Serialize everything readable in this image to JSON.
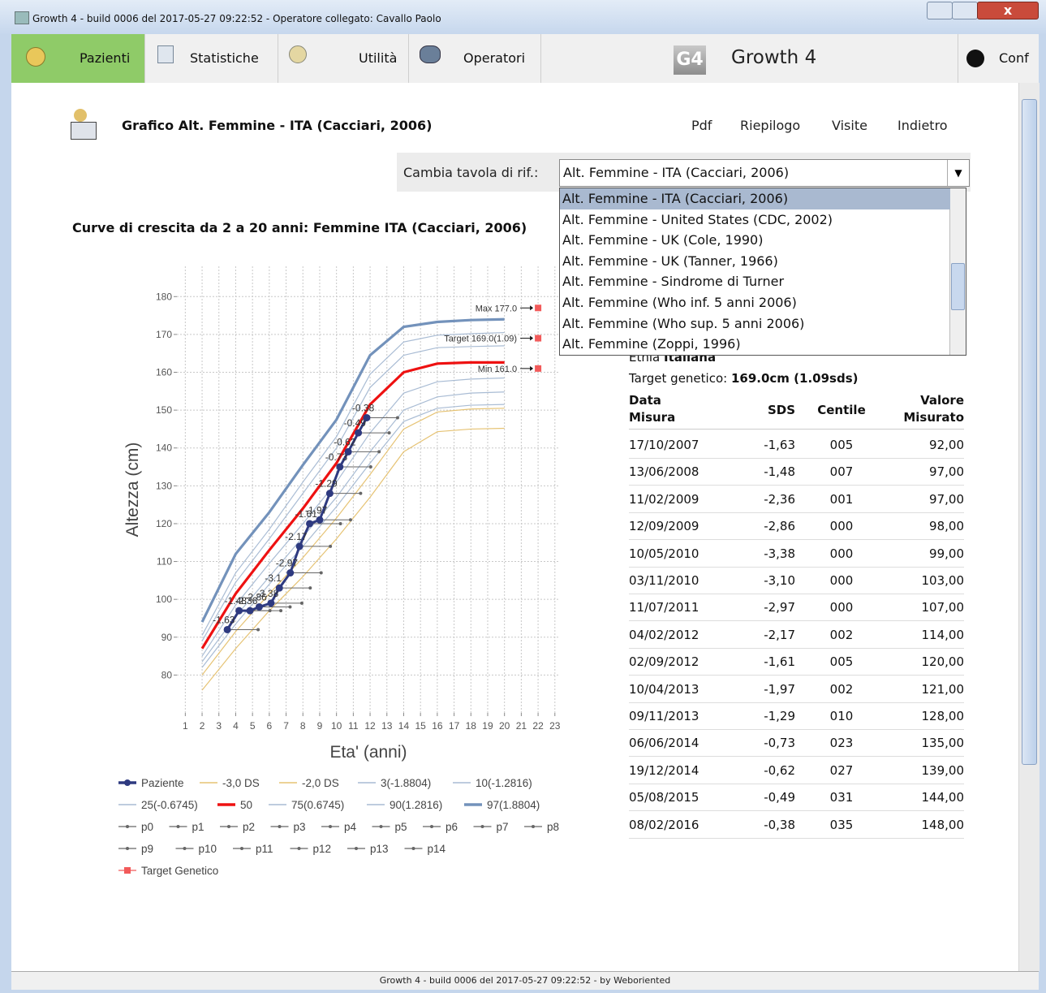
{
  "window": {
    "title": "Growth 4 - build 0006 del 2017-05-27 09:22:52 - Operatore collegato: Cavallo Paolo",
    "footer": "Growth 4 - build 0006 del 2017-05-27 09:22:52 - by Weboriented"
  },
  "menu": {
    "items": [
      "Pazienti",
      "Statistiche",
      "Utilità",
      "Operatori"
    ],
    "app_name": "Growth 4",
    "config": "Conf"
  },
  "header": {
    "title": "Grafico Alt. Femmine - ITA (Cacciari, 2006)",
    "links": [
      "Pdf",
      "Riepilogo",
      "Visite",
      "Indietro"
    ]
  },
  "selector": {
    "label": "Cambia tavola di rif.:",
    "selected": "Alt. Femmine - ITA (Cacciari, 2006)",
    "options": [
      "Alt. Femmine - ITA (Cacciari, 2006)",
      "Alt. Femmine - United States (CDC, 2002)",
      "Alt. Femmine - UK (Cole, 1990)",
      "Alt. Femmine - UK (Tanner, 1966)",
      "Alt. Femmine - Sindrome di Turner",
      "Alt. Femmine (Who inf. 5 anni 2006)",
      "Alt. Femmine (Who sup. 5 anni 2006)",
      "Alt. Femmine (Zoppi, 1996)"
    ]
  },
  "chart": {
    "type": "line",
    "title": "Curve di crescita da 2 a 20 anni: Femmine ITA (Cacciari, 2006)",
    "x_label": "Eta' (anni)",
    "y_label": "Altezza (cm)",
    "xlim": [
      0.5,
      23.3
    ],
    "ylim": [
      70,
      188
    ],
    "xticks": [
      1,
      2,
      3,
      4,
      5,
      6,
      7,
      8,
      9,
      10,
      11,
      12,
      13,
      14,
      15,
      16,
      17,
      18,
      19,
      20,
      21,
      22,
      23
    ],
    "yticks": [
      80,
      90,
      100,
      110,
      120,
      130,
      140,
      150,
      160,
      170,
      180
    ],
    "grid": true,
    "curve_x": [
      2,
      4,
      6,
      8,
      10,
      12,
      14,
      16,
      18,
      20
    ],
    "series": [
      {
        "name": "Paziente",
        "color": "#2e3a80",
        "x": [
          3.5,
          4.2,
          4.85,
          5.4,
          6.1,
          6.6,
          7.25,
          7.8,
          8.4,
          9.0,
          9.6,
          10.2,
          10.7,
          11.3,
          11.8
        ],
        "values": [
          92,
          97,
          97,
          98,
          99,
          103,
          107,
          114,
          120,
          121,
          128,
          135,
          139,
          144,
          148
        ],
        "sds": [
          -1.63,
          -1.48,
          -2.36,
          -2.86,
          -3.38,
          -3.1,
          -2.97,
          -2.17,
          -1.61,
          -1.97,
          -1.29,
          -0.73,
          -0.62,
          -0.49,
          -0.38
        ]
      },
      {
        "name": "-3,0 DS",
        "color": "#e6c374",
        "values": [
          76,
          87,
          97,
          106,
          116,
          127,
          139,
          144.3,
          145,
          145.2
        ]
      },
      {
        "name": "-2,0 DS",
        "color": "#e6c374",
        "values": [
          80,
          91.5,
          101.5,
          111,
          121.5,
          133,
          145,
          149.5,
          150.3,
          150.5
        ]
      },
      {
        "name": "3(-1.8804)",
        "color": "#a9bcd4",
        "values": [
          82,
          93.5,
          104,
          114,
          124.5,
          136,
          147,
          150.5,
          151.3,
          151.5
        ]
      },
      {
        "name": "10(-1.2816)",
        "color": "#a9bcd4",
        "values": [
          83.5,
          95.5,
          106,
          116.5,
          127,
          139,
          150,
          153.5,
          154.5,
          154.8
        ]
      },
      {
        "name": "25(-0.6745)",
        "color": "#a9bcd4",
        "values": [
          85,
          98.5,
          109.5,
          120,
          131,
          144,
          154.5,
          157.5,
          158.2,
          158.5
        ]
      },
      {
        "name": "50",
        "color": "#ee1111",
        "bold": true,
        "values": [
          87,
          101.5,
          113,
          124,
          136,
          151.5,
          160,
          162.3,
          162.6,
          162.6
        ]
      },
      {
        "name": "75(0.6745)",
        "color": "#a9bcd4",
        "values": [
          89,
          104.5,
          116,
          128,
          140,
          156,
          164.5,
          166.5,
          166.8,
          167
        ]
      },
      {
        "name": "90(1.2816)",
        "color": "#a9bcd4",
        "values": [
          90.5,
          107,
          118.5,
          131,
          143,
          159.5,
          168,
          169.8,
          170.2,
          170.5
        ]
      },
      {
        "name": "97(1.8804)",
        "color": "#7392bb",
        "bold": true,
        "values": [
          94,
          112,
          123,
          135.5,
          147.5,
          164.5,
          172,
          173.3,
          173.8,
          174
        ]
      }
    ],
    "projections": {
      "names": [
        "p0",
        "p1",
        "p2",
        "p3",
        "p4",
        "p5",
        "p6",
        "p7",
        "p8",
        "p9",
        "p10",
        "p11",
        "p12",
        "p13",
        "p14"
      ],
      "color": "#666666"
    },
    "target": {
      "name": "Target Genetico",
      "color": "#f25a5a",
      "x": 22,
      "markers": [
        {
          "label": "Max 177.0",
          "value": 177
        },
        {
          "label": "Target 169.0(1.09)",
          "value": 169
        },
        {
          "label": "Min 161.0",
          "value": 161
        }
      ]
    }
  },
  "info": {
    "ethnicity_label": "Etnia",
    "ethnicity": "Italiana",
    "target_label": "Target genetico:",
    "target": "169.0cm (1.09sds)"
  },
  "table": {
    "headers": [
      [
        "Data",
        "Misura"
      ],
      [
        "SDS"
      ],
      [
        "Centile"
      ],
      [
        "Valore",
        "Misurato"
      ]
    ],
    "rows": [
      [
        "17/10/2007",
        "-1,63",
        "005",
        "92,00"
      ],
      [
        "13/06/2008",
        "-1,48",
        "007",
        "97,00"
      ],
      [
        "11/02/2009",
        "-2,36",
        "001",
        "97,00"
      ],
      [
        "12/09/2009",
        "-2,86",
        "000",
        "98,00"
      ],
      [
        "10/05/2010",
        "-3,38",
        "000",
        "99,00"
      ],
      [
        "03/11/2010",
        "-3,10",
        "000",
        "103,00"
      ],
      [
        "11/07/2011",
        "-2,97",
        "000",
        "107,00"
      ],
      [
        "04/02/2012",
        "-2,17",
        "002",
        "114,00"
      ],
      [
        "02/09/2012",
        "-1,61",
        "005",
        "120,00"
      ],
      [
        "10/04/2013",
        "-1,97",
        "002",
        "121,00"
      ],
      [
        "09/11/2013",
        "-1,29",
        "010",
        "128,00"
      ],
      [
        "06/06/2014",
        "-0,73",
        "023",
        "135,00"
      ],
      [
        "19/12/2014",
        "-0,62",
        "027",
        "139,00"
      ],
      [
        "05/08/2015",
        "-0,49",
        "031",
        "144,00"
      ],
      [
        "08/02/2016",
        "-0,38",
        "035",
        "148,00"
      ]
    ]
  }
}
